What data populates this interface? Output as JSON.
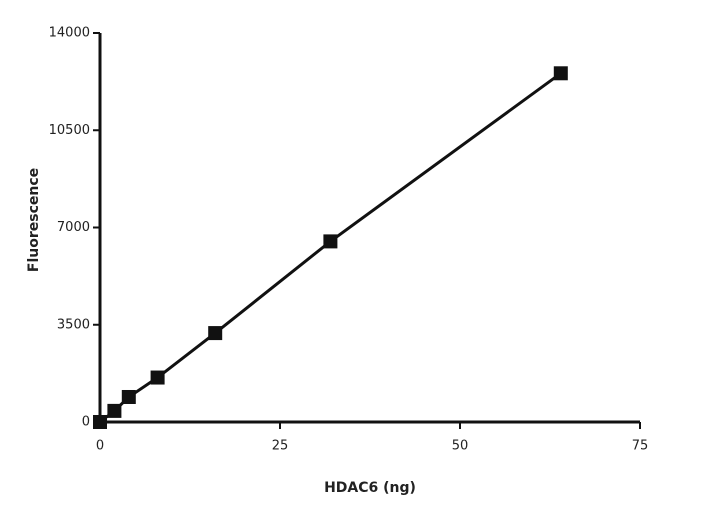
{
  "chart_data": {
    "type": "line",
    "x_label": "HDAC6 (ng)",
    "y_label": "Fluorescence",
    "x": [
      0,
      2,
      4,
      8,
      16,
      32,
      64
    ],
    "series": [
      {
        "values": [
          0,
          400,
          900,
          1600,
          3200,
          6500,
          12550
        ],
        "color": "#111111"
      }
    ],
    "xlim": [
      0,
      75
    ],
    "xticks": [
      0,
      25,
      50,
      75
    ],
    "ylim": [
      0,
      14000
    ],
    "yticks": [
      0,
      3500,
      7000,
      10500,
      14000
    ],
    "marker": "square",
    "grid": false
  }
}
